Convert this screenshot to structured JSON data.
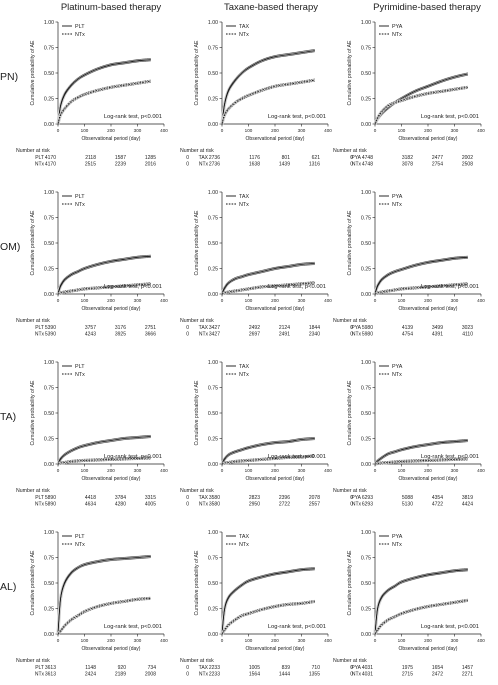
{
  "column_titles": [
    "Platinum-based therapy",
    "Taxane-based therapy",
    "Pyrimidine-based therapy"
  ],
  "row_labels": [
    "PN)",
    "OM)",
    "TA)",
    "AL)"
  ],
  "common": {
    "ylabel": "Cumulative probability of AE",
    "xlabel": "Observational period (day)",
    "xticks": [
      0,
      100,
      200,
      300,
      400
    ],
    "yticks": [
      "0.00",
      "0.25",
      "0.50",
      "0.75",
      "1.00"
    ],
    "risk_title": "Number at risk",
    "logrank": "Log-rank test, p<0.001",
    "ntx_label": "NTx"
  },
  "chart_data": [
    {
      "type": "line",
      "row": 0,
      "col": 0,
      "drug": "PLT",
      "xlim": [
        0,
        400
      ],
      "ylim": [
        0,
        1
      ],
      "x": [
        0,
        10,
        25,
        50,
        75,
        100,
        150,
        200,
        250,
        300,
        350
      ],
      "series": [
        {
          "name": "PLT",
          "values": [
            0,
            0.18,
            0.29,
            0.38,
            0.44,
            0.48,
            0.54,
            0.58,
            0.6,
            0.62,
            0.63
          ]
        },
        {
          "name": "NTx",
          "values": [
            0,
            0.09,
            0.15,
            0.22,
            0.26,
            0.29,
            0.33,
            0.36,
            0.38,
            0.4,
            0.42
          ]
        }
      ],
      "risk": {
        "PLT": [
          "4170",
          "2118",
          "1587",
          "1285",
          "0"
        ],
        "NTx": [
          "4170",
          "2515",
          "2239",
          "2016",
          "0"
        ]
      }
    },
    {
      "type": "line",
      "row": 0,
      "col": 1,
      "drug": "TAX",
      "xlim": [
        0,
        400
      ],
      "ylim": [
        0,
        1
      ],
      "x": [
        0,
        10,
        25,
        50,
        75,
        100,
        150,
        200,
        250,
        300,
        350
      ],
      "series": [
        {
          "name": "TAX",
          "values": [
            0,
            0.2,
            0.33,
            0.43,
            0.5,
            0.55,
            0.62,
            0.66,
            0.68,
            0.7,
            0.72
          ]
        },
        {
          "name": "NTx",
          "values": [
            0,
            0.09,
            0.15,
            0.21,
            0.25,
            0.28,
            0.33,
            0.37,
            0.39,
            0.41,
            0.43
          ]
        }
      ],
      "risk": {
        "TAX": [
          "2736",
          "1176",
          "801",
          "621",
          "0"
        ],
        "NTx": [
          "2736",
          "1638",
          "1439",
          "1316",
          "0"
        ]
      }
    },
    {
      "type": "line",
      "row": 0,
      "col": 2,
      "drug": "PYA",
      "xlim": [
        0,
        400
      ],
      "ylim": [
        0,
        1
      ],
      "x": [
        0,
        10,
        25,
        50,
        75,
        100,
        150,
        200,
        250,
        300,
        350
      ],
      "series": [
        {
          "name": "PYA",
          "values": [
            0,
            0.05,
            0.1,
            0.16,
            0.21,
            0.25,
            0.32,
            0.37,
            0.42,
            0.46,
            0.49
          ]
        },
        {
          "name": "NTx",
          "values": [
            0,
            0.06,
            0.12,
            0.18,
            0.21,
            0.23,
            0.27,
            0.3,
            0.32,
            0.34,
            0.36
          ]
        }
      ],
      "risk": {
        "PYA": [
          "4748",
          "3182",
          "2477",
          "2002",
          "0"
        ],
        "NTx": [
          "4748",
          "3078",
          "2754",
          "2508",
          "0"
        ]
      }
    },
    {
      "type": "line",
      "row": 1,
      "col": 0,
      "drug": "PLT",
      "xlim": [
        0,
        400
      ],
      "ylim": [
        0,
        1
      ],
      "x": [
        0,
        10,
        25,
        50,
        75,
        100,
        150,
        200,
        250,
        300,
        350
      ],
      "series": [
        {
          "name": "PLT",
          "values": [
            0,
            0.08,
            0.14,
            0.19,
            0.22,
            0.25,
            0.29,
            0.32,
            0.34,
            0.36,
            0.37
          ]
        },
        {
          "name": "NTx",
          "values": [
            0,
            0.01,
            0.02,
            0.03,
            0.04,
            0.05,
            0.06,
            0.07,
            0.08,
            0.09,
            0.1
          ]
        }
      ],
      "risk": {
        "PLT": [
          "5390",
          "3757",
          "3176",
          "2751",
          "0"
        ],
        "NTx": [
          "5390",
          "4243",
          "3925",
          "3666",
          "0"
        ]
      }
    },
    {
      "type": "line",
      "row": 1,
      "col": 1,
      "drug": "TAX",
      "xlim": [
        0,
        400
      ],
      "ylim": [
        0,
        1
      ],
      "x": [
        0,
        10,
        25,
        50,
        75,
        100,
        150,
        200,
        250,
        300,
        350
      ],
      "series": [
        {
          "name": "TAX",
          "values": [
            0,
            0.06,
            0.11,
            0.15,
            0.17,
            0.19,
            0.22,
            0.25,
            0.27,
            0.29,
            0.3
          ]
        },
        {
          "name": "NTx",
          "values": [
            0,
            0.01,
            0.02,
            0.03,
            0.04,
            0.05,
            0.07,
            0.08,
            0.09,
            0.1,
            0.11
          ]
        }
      ],
      "risk": {
        "TAX": [
          "3427",
          "2492",
          "2124",
          "1844",
          "0"
        ],
        "NTx": [
          "3427",
          "2697",
          "2491",
          "2340",
          "0"
        ]
      }
    },
    {
      "type": "line",
      "row": 1,
      "col": 2,
      "drug": "PYA",
      "xlim": [
        0,
        400
      ],
      "ylim": [
        0,
        1
      ],
      "x": [
        0,
        10,
        25,
        50,
        75,
        100,
        150,
        200,
        250,
        300,
        350
      ],
      "series": [
        {
          "name": "PYA",
          "values": [
            0,
            0.08,
            0.14,
            0.19,
            0.22,
            0.24,
            0.28,
            0.31,
            0.33,
            0.35,
            0.36
          ]
        },
        {
          "name": "NTx",
          "values": [
            0,
            0.01,
            0.02,
            0.03,
            0.04,
            0.05,
            0.06,
            0.07,
            0.08,
            0.09,
            0.1
          ]
        }
      ],
      "risk": {
        "PYA": [
          "5980",
          "4139",
          "3499",
          "3023",
          "0"
        ],
        "NTx": [
          "5980",
          "4754",
          "4391",
          "4110",
          "0"
        ]
      }
    },
    {
      "type": "line",
      "row": 2,
      "col": 0,
      "drug": "PLT",
      "xlim": [
        0,
        400
      ],
      "ylim": [
        0,
        1
      ],
      "x": [
        0,
        10,
        25,
        50,
        75,
        100,
        150,
        200,
        250,
        300,
        350
      ],
      "series": [
        {
          "name": "PLT",
          "values": [
            0,
            0.05,
            0.09,
            0.13,
            0.16,
            0.18,
            0.21,
            0.23,
            0.25,
            0.26,
            0.27
          ]
        },
        {
          "name": "NTx",
          "values": [
            0,
            0.01,
            0.015,
            0.025,
            0.03,
            0.035,
            0.04,
            0.045,
            0.05,
            0.055,
            0.06
          ]
        }
      ],
      "risk": {
        "PLT": [
          "5890",
          "4418",
          "3784",
          "3315",
          "0"
        ],
        "NTx": [
          "5890",
          "4634",
          "4280",
          "4005",
          "0"
        ]
      }
    },
    {
      "type": "line",
      "row": 2,
      "col": 1,
      "drug": "TAX",
      "xlim": [
        0,
        400
      ],
      "ylim": [
        0,
        1
      ],
      "x": [
        0,
        10,
        25,
        50,
        75,
        100,
        150,
        200,
        250,
        300,
        350
      ],
      "series": [
        {
          "name": "TAX",
          "values": [
            0,
            0.05,
            0.09,
            0.12,
            0.14,
            0.16,
            0.19,
            0.21,
            0.22,
            0.24,
            0.25
          ]
        },
        {
          "name": "NTx",
          "values": [
            0,
            0.01,
            0.015,
            0.025,
            0.03,
            0.035,
            0.045,
            0.055,
            0.065,
            0.07,
            0.08
          ]
        }
      ],
      "risk": {
        "TAX": [
          "3580",
          "2823",
          "2396",
          "2078",
          "0"
        ],
        "NTx": [
          "3580",
          "2950",
          "2722",
          "2557",
          "0"
        ]
      }
    },
    {
      "type": "line",
      "row": 2,
      "col": 2,
      "drug": "PYA",
      "xlim": [
        0,
        400
      ],
      "ylim": [
        0,
        1
      ],
      "x": [
        0,
        10,
        25,
        50,
        75,
        100,
        150,
        200,
        250,
        300,
        350
      ],
      "series": [
        {
          "name": "PYA",
          "values": [
            0,
            0.03,
            0.06,
            0.1,
            0.12,
            0.14,
            0.17,
            0.19,
            0.21,
            0.22,
            0.23
          ]
        },
        {
          "name": "NTx",
          "values": [
            0,
            0.005,
            0.01,
            0.015,
            0.02,
            0.025,
            0.03,
            0.035,
            0.04,
            0.045,
            0.05
          ]
        }
      ],
      "risk": {
        "PYA": [
          "6293",
          "5088",
          "4354",
          "3819",
          "0"
        ],
        "NTx": [
          "6293",
          "5130",
          "4722",
          "4424",
          "0"
        ]
      }
    },
    {
      "type": "line",
      "row": 3,
      "col": 0,
      "drug": "PLT",
      "xlim": [
        0,
        400
      ],
      "ylim": [
        0,
        1
      ],
      "x": [
        0,
        10,
        25,
        50,
        75,
        100,
        150,
        200,
        250,
        300,
        350
      ],
      "series": [
        {
          "name": "PLT",
          "values": [
            0,
            0.35,
            0.5,
            0.6,
            0.65,
            0.68,
            0.71,
            0.73,
            0.74,
            0.75,
            0.76
          ]
        },
        {
          "name": "NTx",
          "values": [
            0,
            0.03,
            0.08,
            0.14,
            0.18,
            0.22,
            0.27,
            0.3,
            0.32,
            0.34,
            0.35
          ]
        }
      ],
      "risk": {
        "PLT": [
          "3613",
          "1148",
          "920",
          "734",
          "0"
        ],
        "NTx": [
          "3613",
          "2424",
          "2189",
          "2008",
          "0"
        ]
      }
    },
    {
      "type": "line",
      "row": 3,
      "col": 1,
      "drug": "TAX",
      "xlim": [
        0,
        400
      ],
      "ylim": [
        0,
        1
      ],
      "x": [
        0,
        10,
        25,
        50,
        75,
        100,
        150,
        200,
        250,
        300,
        350
      ],
      "series": [
        {
          "name": "TAX",
          "values": [
            0,
            0.25,
            0.36,
            0.43,
            0.48,
            0.52,
            0.56,
            0.59,
            0.61,
            0.63,
            0.64
          ]
        },
        {
          "name": "NTx",
          "values": [
            0,
            0.04,
            0.09,
            0.14,
            0.18,
            0.2,
            0.24,
            0.27,
            0.29,
            0.3,
            0.32
          ]
        }
      ],
      "risk": {
        "TAX": [
          "2233",
          "1005",
          "839",
          "710",
          "0"
        ],
        "NTx": [
          "2233",
          "1564",
          "1444",
          "1355",
          "0"
        ]
      }
    },
    {
      "type": "line",
      "row": 3,
      "col": 2,
      "drug": "PYA",
      "xlim": [
        0,
        400
      ],
      "ylim": [
        0,
        1
      ],
      "x": [
        0,
        10,
        25,
        50,
        75,
        100,
        150,
        200,
        250,
        300,
        350
      ],
      "series": [
        {
          "name": "PYA",
          "values": [
            0,
            0.25,
            0.36,
            0.43,
            0.47,
            0.51,
            0.55,
            0.58,
            0.6,
            0.62,
            0.63
          ]
        },
        {
          "name": "NTx",
          "values": [
            0,
            0.04,
            0.09,
            0.14,
            0.17,
            0.2,
            0.24,
            0.27,
            0.29,
            0.31,
            0.33
          ]
        }
      ],
      "risk": {
        "PYA": [
          "4031",
          "1975",
          "1654",
          "1457",
          "0"
        ],
        "NTx": [
          "4031",
          "2715",
          "2472",
          "2271",
          "0"
        ]
      }
    }
  ]
}
